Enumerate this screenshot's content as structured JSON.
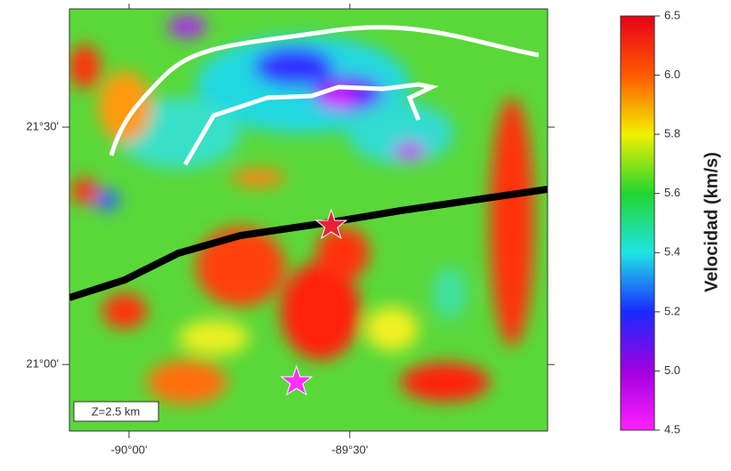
{
  "map": {
    "depth_label": "Z=2.5 km",
    "xlim": [
      -90.135,
      -89.052
    ],
    "ylim": [
      20.86,
      21.749
    ],
    "xticks": [
      {
        "value": -90,
        "label": "-90°00'"
      },
      {
        "value": -89.5,
        "label": "-89°30'"
      }
    ],
    "yticks": [
      {
        "value": 21.5,
        "label": "21°30'"
      },
      {
        "value": 21,
        "label": "21°00'"
      }
    ]
  },
  "colorbar": {
    "label": "Velocidad (km/s)",
    "ticks": [
      6.5,
      {
        "value": 6,
        "label": "6.0"
      },
      5.8,
      5.6,
      5.4,
      5.2,
      {
        "value": 5,
        "label": "5.0"
      },
      4.5
    ],
    "colors": [
      "#e8001a",
      "#ff5a00",
      "#f2f000",
      "#22d630",
      "#20e4e4",
      "#1a2aff",
      "#a000e0",
      "#ff20ff"
    ]
  }
}
